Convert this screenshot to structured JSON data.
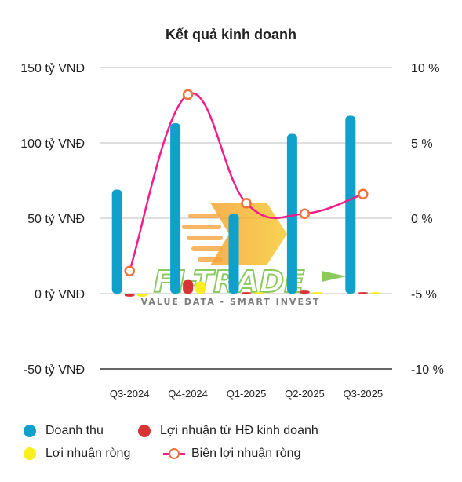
{
  "chart_data": {
    "type": "bar",
    "title": "Kết quả kinh doanh",
    "categories": [
      "Q3-2024",
      "Q4-2024",
      "Q1-2025",
      "Q2-2025",
      "Q3-2025"
    ],
    "series": [
      {
        "name": "Doanh thu",
        "type": "bar",
        "axis": "left",
        "color": "#0fa0cc",
        "values": [
          69,
          113,
          53,
          106,
          118
        ]
      },
      {
        "name": "Lợi nhuận từ HĐ kinh doanh",
        "type": "bar",
        "axis": "left",
        "color": "#d93434",
        "values": [
          -2,
          9,
          1,
          2,
          1
        ]
      },
      {
        "name": "Lợi nhuận ròng",
        "type": "bar",
        "axis": "left",
        "color": "#f8ef1c",
        "values": [
          -2,
          8,
          1,
          1,
          1
        ]
      },
      {
        "name": "Biên lợi nhuận ròng",
        "type": "line",
        "axis": "right",
        "color": "#f21c8b",
        "marker_color": "#f2713a",
        "values": [
          -3.5,
          8.2,
          1.0,
          0.3,
          1.6
        ]
      }
    ],
    "y_left": {
      "ylim": [
        -50,
        150
      ],
      "ticks": [
        "150 tỷ VNĐ",
        "100 tỷ VNĐ",
        "50 tỷ VNĐ",
        "0 tỷ VNĐ",
        "-50 tỷ VNĐ"
      ],
      "tick_values": [
        150,
        100,
        50,
        0,
        -50
      ]
    },
    "y_right": {
      "ylim": [
        -10,
        10
      ],
      "ticks": [
        "10 %",
        "5 %",
        "0 %",
        "-5 %",
        "-10 %"
      ],
      "tick_values": [
        10,
        5,
        0,
        -5,
        -10
      ]
    },
    "grid": true,
    "legend_position": "bottom"
  },
  "watermark": {
    "brand": "FI-TRADE",
    "tagline": "VALUE DATA - SMART INVEST"
  }
}
